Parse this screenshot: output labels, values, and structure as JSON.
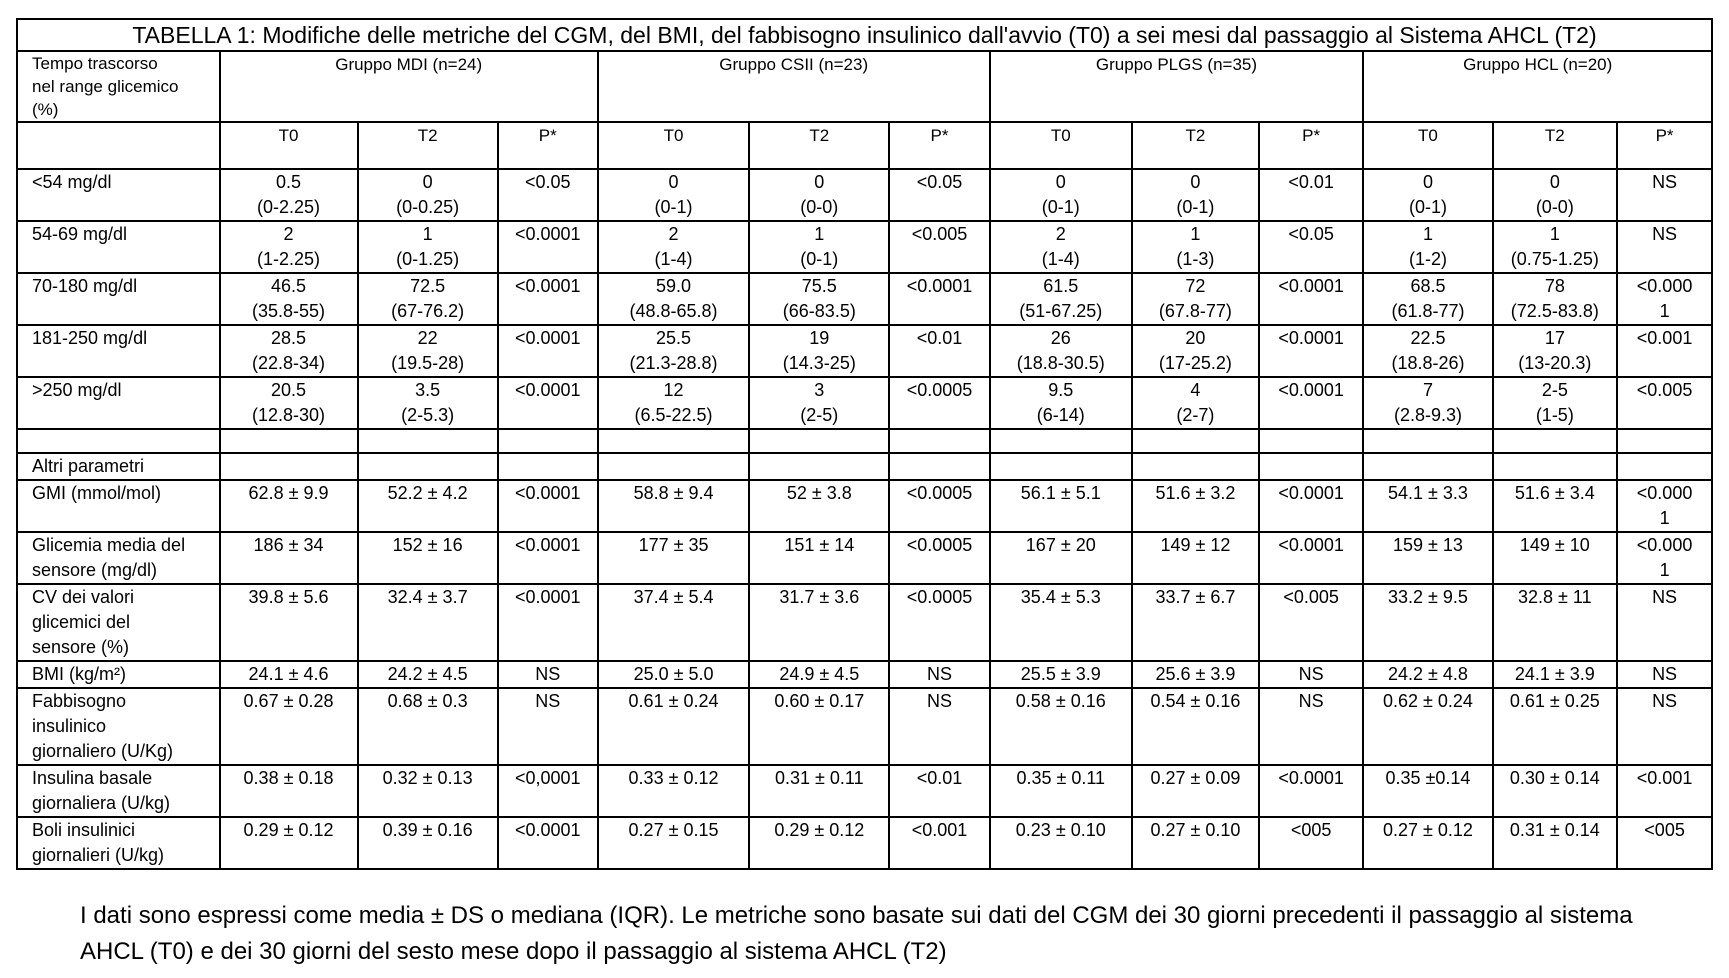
{
  "title": "TABELLA 1: Modifiche delle metriche del CGM, del BMI, del fabbisogno insulinico  dall'avvio (T0) a sei mesi dal passaggio al Sistema AHCL (T2)",
  "header": {
    "row_label_line1": "Tempo trascorso",
    "row_label_line2": "nel range glicemico",
    "row_label_line3": "(%)",
    "groups": [
      "Gruppo MDI (n=24)",
      "Gruppo CSII (n=23)",
      "Gruppo PLGS (n=35)",
      "Gruppo HCL (n=20)"
    ],
    "sub": [
      "T0",
      "T2",
      "P*"
    ]
  },
  "range_rows": [
    {
      "label": "<54 mg/dl",
      "cells": [
        [
          "0.5",
          "(0-2.25)"
        ],
        [
          "0",
          "(0-0.25)"
        ],
        [
          "<0.05",
          ""
        ],
        [
          "0",
          "(0-1)"
        ],
        [
          "0",
          "(0-0)"
        ],
        [
          "<0.05",
          ""
        ],
        [
          "0",
          "(0-1)"
        ],
        [
          "0",
          "(0-1)"
        ],
        [
          "<0.01",
          ""
        ],
        [
          "0",
          "(0-1)"
        ],
        [
          "0",
          "(0-0)"
        ],
        [
          "NS",
          ""
        ]
      ]
    },
    {
      "label": "54-69 mg/dl",
      "cells": [
        [
          "2",
          "(1-2.25)"
        ],
        [
          "1",
          "(0-1.25)"
        ],
        [
          "<0.0001",
          ""
        ],
        [
          "2",
          "(1-4)"
        ],
        [
          "1",
          "(0-1)"
        ],
        [
          "<0.005",
          ""
        ],
        [
          "2",
          "(1-4)"
        ],
        [
          "1",
          "(1-3)"
        ],
        [
          "<0.05",
          ""
        ],
        [
          "1",
          "(1-2)"
        ],
        [
          "1",
          "(0.75-1.25)"
        ],
        [
          "NS",
          ""
        ]
      ]
    },
    {
      "label": "70-180 mg/dl",
      "cells": [
        [
          "46.5",
          "(35.8-55)"
        ],
        [
          "72.5",
          "(67-76.2)"
        ],
        [
          "<0.0001",
          ""
        ],
        [
          "59.0",
          "(48.8-65.8)"
        ],
        [
          "75.5",
          "(66-83.5)"
        ],
        [
          "<0.0001",
          ""
        ],
        [
          "61.5",
          "(51-67.25)"
        ],
        [
          "72",
          "(67.8-77)"
        ],
        [
          "<0.0001",
          ""
        ],
        [
          "68.5",
          "(61.8-77)"
        ],
        [
          "78",
          "(72.5-83.8)"
        ],
        [
          "<0.000",
          "1"
        ]
      ]
    },
    {
      "label": "181-250 mg/dl",
      "cells": [
        [
          "28.5",
          "(22.8-34)"
        ],
        [
          "22",
          "(19.5-28)"
        ],
        [
          "<0.0001",
          ""
        ],
        [
          "25.5",
          "(21.3-28.8)"
        ],
        [
          "19",
          "(14.3-25)"
        ],
        [
          "<0.01",
          ""
        ],
        [
          "26",
          "(18.8-30.5)"
        ],
        [
          "20",
          "(17-25.2)"
        ],
        [
          "<0.0001",
          ""
        ],
        [
          "22.5",
          "(18.8-26)"
        ],
        [
          "17",
          "(13-20.3)"
        ],
        [
          "<0.001",
          ""
        ]
      ]
    },
    {
      "label": ">250 mg/dl",
      "cells": [
        [
          "20.5",
          "(12.8-30)"
        ],
        [
          "3.5",
          "(2-5.3)"
        ],
        [
          "<0.0001",
          ""
        ],
        [
          "12",
          "(6.5-22.5)"
        ],
        [
          "3",
          "(2-5)"
        ],
        [
          "<0.0005",
          ""
        ],
        [
          "9.5",
          "(6-14)"
        ],
        [
          "4",
          "(2-7)"
        ],
        [
          "<0.0001",
          ""
        ],
        [
          "7",
          "(2.8-9.3)"
        ],
        [
          "2-5",
          "(1-5)"
        ],
        [
          "<0.005",
          ""
        ]
      ]
    }
  ],
  "altri_label": "Altri parametri",
  "other_rows": [
    {
      "label": [
        "GMI (mmol/mol)"
      ],
      "cells": [
        [
          "62.8 ± 9.9"
        ],
        [
          "52.2 ± 4.2"
        ],
        [
          "<0.0001"
        ],
        [
          "58.8 ± 9.4"
        ],
        [
          "52 ± 3.8"
        ],
        [
          "<0.0005"
        ],
        [
          "56.1 ± 5.1"
        ],
        [
          "51.6 ± 3.2"
        ],
        [
          "<0.0001"
        ],
        [
          "54.1 ± 3.3"
        ],
        [
          "51.6 ± 3.4"
        ],
        [
          "<0.000",
          "1"
        ]
      ]
    },
    {
      "label": [
        "Glicemia media del",
        "sensore (mg/dl)"
      ],
      "cells": [
        [
          "186 ± 34"
        ],
        [
          "152 ± 16"
        ],
        [
          "<0.0001"
        ],
        [
          "177 ± 35"
        ],
        [
          "151 ± 14"
        ],
        [
          "<0.0005"
        ],
        [
          "167 ± 20"
        ],
        [
          "149 ± 12"
        ],
        [
          "<0.0001"
        ],
        [
          "159 ± 13"
        ],
        [
          "149 ± 10"
        ],
        [
          "<0.000",
          "1"
        ]
      ]
    },
    {
      "label": [
        "CV dei valori",
        "glicemici del",
        "sensore (%)"
      ],
      "cells": [
        [
          "39.8 ± 5.6"
        ],
        [
          "32.4 ± 3.7"
        ],
        [
          "<0.0001"
        ],
        [
          "37.4 ± 5.4"
        ],
        [
          "31.7 ± 3.6"
        ],
        [
          "<0.0005"
        ],
        [
          "35.4 ± 5.3"
        ],
        [
          "33.7 ± 6.7"
        ],
        [
          "<0.005"
        ],
        [
          "33.2 ± 9.5"
        ],
        [
          "32.8 ± 11"
        ],
        [
          "NS"
        ]
      ]
    },
    {
      "label": [
        "BMI (kg/m²)"
      ],
      "cells": [
        [
          "24.1 ± 4.6"
        ],
        [
          "24.2 ± 4.5"
        ],
        [
          "NS"
        ],
        [
          "25.0 ± 5.0"
        ],
        [
          "24.9 ± 4.5"
        ],
        [
          "NS"
        ],
        [
          "25.5 ± 3.9"
        ],
        [
          "25.6 ± 3.9"
        ],
        [
          "NS"
        ],
        [
          "24.2 ± 4.8"
        ],
        [
          "24.1 ± 3.9"
        ],
        [
          "NS"
        ]
      ]
    },
    {
      "label": [
        "Fabbisogno",
        "insulinico",
        "giornaliero (U/Kg)"
      ],
      "cells": [
        [
          "0.67 ± 0.28"
        ],
        [
          "0.68 ± 0.3"
        ],
        [
          "NS"
        ],
        [
          "0.61 ± 0.24"
        ],
        [
          "0.60 ± 0.17"
        ],
        [
          "NS"
        ],
        [
          "0.58 ± 0.16"
        ],
        [
          "0.54 ± 0.16"
        ],
        [
          "NS"
        ],
        [
          "0.62 ± 0.24"
        ],
        [
          "0.61 ± 0.25"
        ],
        [
          "NS"
        ]
      ]
    },
    {
      "label": [
        "Insulina basale",
        "giornaliera (U/kg)"
      ],
      "cells": [
        [
          "0.38 ± 0.18"
        ],
        [
          "0.32 ± 0.13"
        ],
        [
          "<0,0001"
        ],
        [
          "0.33 ± 0.12"
        ],
        [
          "0.31 ± 0.11"
        ],
        [
          "<0.01"
        ],
        [
          "0.35 ± 0.11"
        ],
        [
          "0.27 ± 0.09"
        ],
        [
          "<0.0001"
        ],
        [
          "0.35 ±0.14"
        ],
        [
          "0.30 ± 0.14"
        ],
        [
          "<0.001"
        ]
      ]
    },
    {
      "label": [
        "Boli insulinici",
        "giornalieri (U/kg)"
      ],
      "cells": [
        [
          "0.29 ± 0.12"
        ],
        [
          "0.39 ± 0.16"
        ],
        [
          "<0.0001"
        ],
        [
          "0.27 ± 0.15"
        ],
        [
          "0.29 ± 0.12"
        ],
        [
          "<0.001"
        ],
        [
          "0.23 ± 0.10"
        ],
        [
          "0.27 ± 0.10"
        ],
        [
          "<005"
        ],
        [
          "0.27 ± 0.12"
        ],
        [
          "0.31 ± 0.14"
        ],
        [
          "<005"
        ]
      ]
    }
  ],
  "footnote": "I dati sono espressi come media ± DS o mediana (IQR). Le metriche sono basate sui dati del CGM dei 30 giorni precedenti il passaggio al sistema AHCL (T0) e dei 30 giorni del sesto mese dopo il passaggio al sistema AHCL (T2)"
}
